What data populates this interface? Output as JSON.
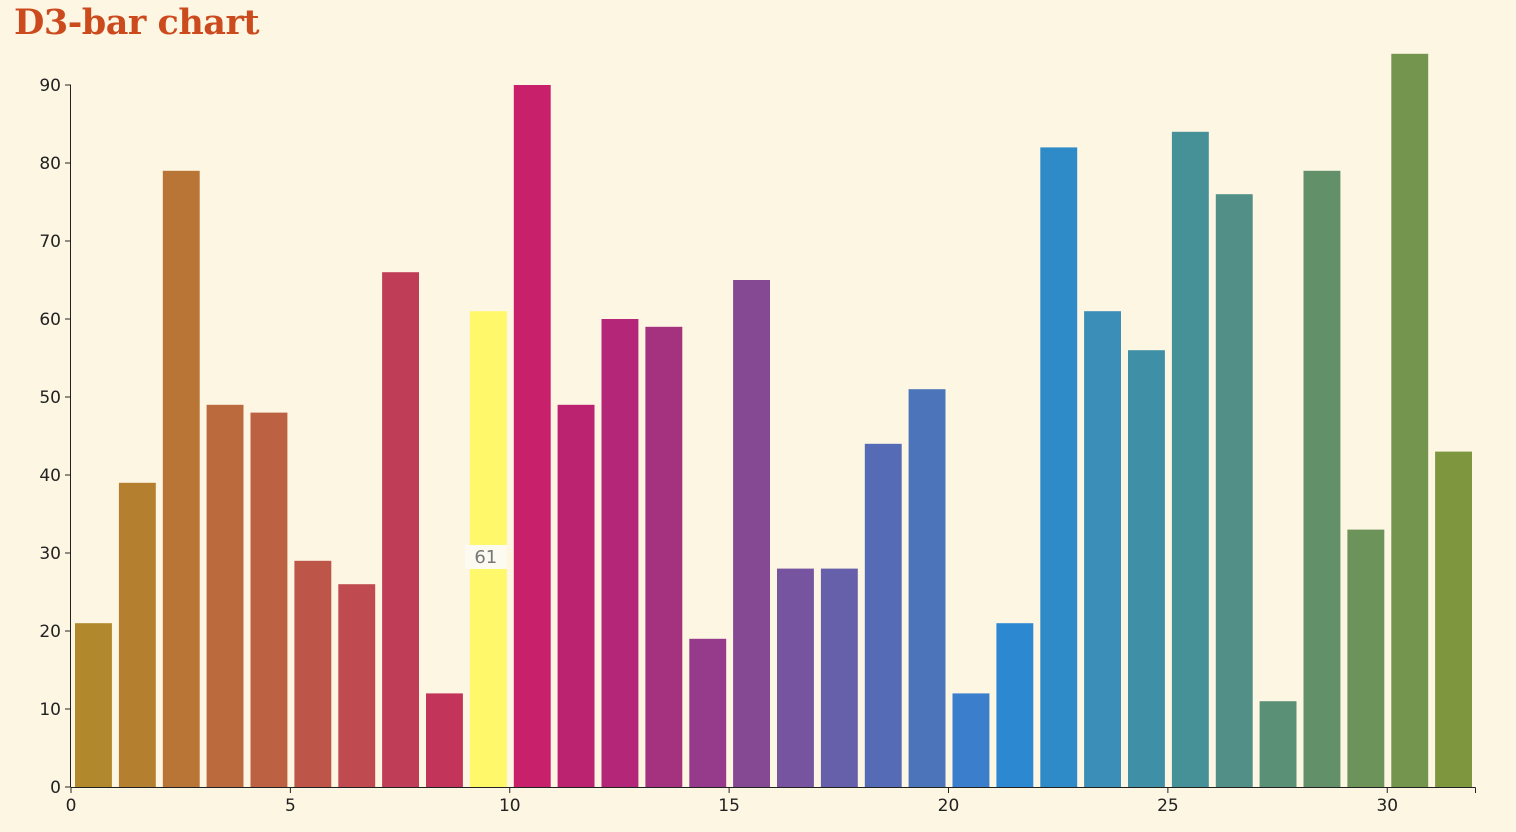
{
  "title": "D3-bar chart",
  "colors": {
    "background": "#fdf6e3",
    "title": "#cc4b1e",
    "highlight": "#fff86a"
  },
  "tooltip": {
    "bar_index": 9,
    "text": "61"
  },
  "chart_data": {
    "type": "bar",
    "title": "D3-bar chart",
    "xlabel": "",
    "ylabel": "",
    "x_ticks": [
      0,
      5,
      10,
      15,
      20,
      25,
      30
    ],
    "y_ticks": [
      0,
      10,
      20,
      30,
      40,
      50,
      60,
      70,
      80,
      90
    ],
    "x_domain": [
      0,
      32
    ],
    "ylim": [
      0,
      90
    ],
    "grid": false,
    "values": [
      21,
      39,
      79,
      49,
      48,
      29,
      26,
      66,
      12,
      61,
      90,
      49,
      60,
      59,
      19,
      65,
      28,
      28,
      44,
      51,
      12,
      21,
      82,
      61,
      56,
      84,
      76,
      11,
      79,
      33,
      94,
      43
    ],
    "highlighted_index": 9,
    "colors": [
      "#b1882b",
      "#b57f30",
      "#b97535",
      "#bb6a3e",
      "#bc6243",
      "#bd5649",
      "#bf4b50",
      "#c03d58",
      "#c3345b",
      "#fff86a",
      "#c8206a",
      "#bb2270",
      "#b42778",
      "#a4327f",
      "#963a8b",
      "#854893",
      "#7654a0",
      "#6660aa",
      "#556bb5",
      "#4b74bb",
      "#3b7fcc",
      "#2d88d2",
      "#2f8bc8",
      "#3a8eb8",
      "#3f8fa7",
      "#469097",
      "#518f87",
      "#5a9176",
      "#629068",
      "#6b935a",
      "#73954e",
      "#7e963e"
    ]
  }
}
